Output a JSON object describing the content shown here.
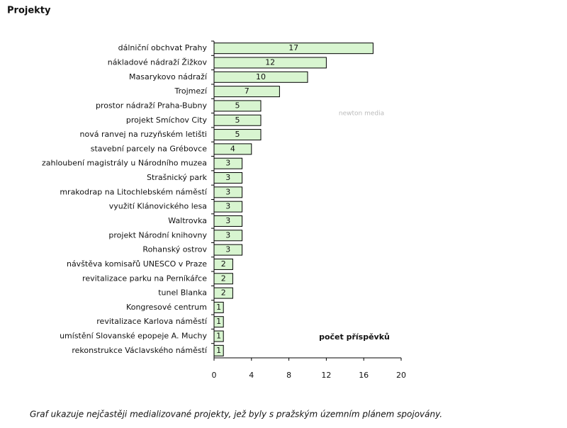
{
  "chart_data": {
    "type": "barh",
    "title": "Projekty",
    "categories": [
      "dálniční obchvat Prahy",
      "nákladové nádraží Žižkov",
      "Masarykovo nádraží",
      "Trojmezí",
      "prostor nádraží Praha-Bubny",
      "projekt Smíchov City",
      "nová ranvej na ruzyňském letišti",
      "stavební parcely na Grébovce",
      "zahloubení magistrály u Národního muzea",
      "Strašnický park",
      "mrakodrap na Litochlebském náměstí",
      "využití Klánovického lesa",
      "Waltrovka",
      "projekt Národní knihovny",
      "Rohanský ostrov",
      "návštěva komisařů UNESCO v Praze",
      "revitalizace parku na Perníkářce",
      "tunel Blanka",
      "Kongresové centrum",
      "revitalizace Karlova náměstí",
      "umístění Slovanské epopeje A. Muchy",
      "rekonstrukce Václavského náměstí"
    ],
    "values": [
      17,
      12,
      10,
      7,
      5,
      5,
      5,
      4,
      3,
      3,
      3,
      3,
      3,
      3,
      3,
      2,
      2,
      2,
      1,
      1,
      1,
      1
    ],
    "color": "#d8f5d0",
    "xlim": [
      0,
      20
    ],
    "xticks": [
      0,
      4,
      8,
      12,
      16,
      20
    ],
    "x_label": "počet příspěvků",
    "watermark": "newton media",
    "caption": "Graf ukazuje nejčastěji medializované projekty, jež byly s pražským územním plánem spojovány."
  }
}
